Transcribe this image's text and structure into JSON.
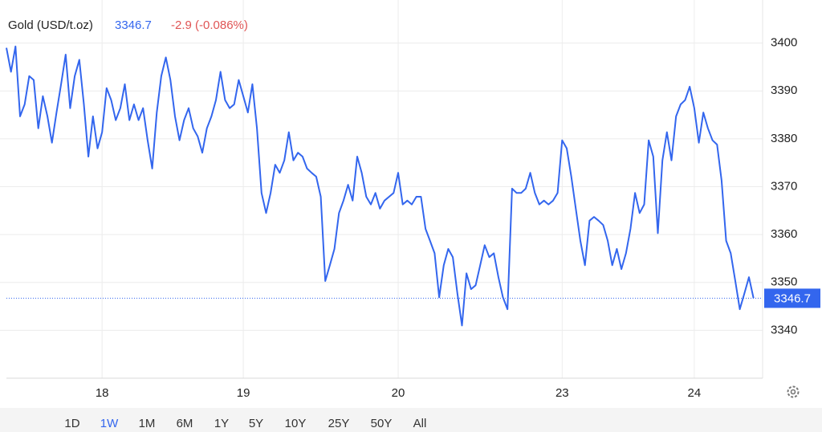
{
  "chart_data": {
    "type": "line",
    "title": "Gold (USD/t.oz)",
    "last_value": 3346.7,
    "change_label": "-2.9 (-0.086%)",
    "series": [
      {
        "color": "#3366ee",
        "values": [
          3399.0,
          3394.0,
          3399.3,
          3384.7,
          3387.2,
          3393.1,
          3392.3,
          3382.2,
          3388.9,
          3384.7,
          3379.2,
          3385.5,
          3391.4,
          3397.6,
          3386.4,
          3393.1,
          3396.5,
          3387.2,
          3376.3,
          3384.7,
          3378.0,
          3381.4,
          3390.6,
          3388.1,
          3383.9,
          3386.4,
          3391.4,
          3383.9,
          3387.2,
          3383.9,
          3386.4,
          3379.7,
          3373.8,
          3385.5,
          3393.1,
          3397.0,
          3392.3,
          3384.7,
          3379.7,
          3383.9,
          3386.4,
          3382.2,
          3380.5,
          3377.1,
          3382.2,
          3384.7,
          3388.1,
          3394.0,
          3388.1,
          3386.4,
          3387.2,
          3392.3,
          3388.9,
          3385.5,
          3391.4,
          3382.2,
          3368.7,
          3364.5,
          3368.7,
          3374.6,
          3372.9,
          3375.5,
          3381.4,
          3375.5,
          3377.1,
          3376.3,
          3373.8,
          3372.9,
          3372.1,
          3367.9,
          3350.3,
          3353.6,
          3357.0,
          3364.5,
          3367.1,
          3370.4,
          3367.1,
          3376.3,
          3372.9,
          3367.9,
          3366.3,
          3368.7,
          3365.4,
          3367.1,
          3367.9,
          3368.7,
          3372.9,
          3366.3,
          3367.1,
          3366.3,
          3367.9,
          3367.9,
          3361.2,
          3358.7,
          3356.1,
          3346.9,
          3353.6,
          3357.0,
          3355.3,
          3347.7,
          3341.0,
          3351.9,
          3348.6,
          3349.4,
          3353.6,
          3357.8,
          3355.3,
          3356.1,
          3351.1,
          3346.9,
          3344.4,
          3369.6,
          3368.7,
          3368.7,
          3369.6,
          3372.9,
          3368.7,
          3366.3,
          3367.1,
          3366.3,
          3367.1,
          3368.7,
          3379.7,
          3378.0,
          3372.1,
          3365.4,
          3358.7,
          3353.6,
          3362.9,
          3363.7,
          3362.9,
          3362.0,
          3358.7,
          3353.6,
          3357.0,
          3352.8,
          3356.1,
          3361.2,
          3368.7,
          3364.5,
          3366.3,
          3379.7,
          3376.3,
          3360.3,
          3375.5,
          3381.4,
          3375.5,
          3384.7,
          3387.2,
          3388.1,
          3390.9,
          3386.4,
          3379.2,
          3385.5,
          3382.2,
          3379.7,
          3378.8,
          3371.3,
          3358.7,
          3356.1,
          3350.3,
          3344.4,
          3347.7,
          3351.1,
          3346.7
        ]
      }
    ],
    "xlim": [
      0,
      166
    ],
    "xticks": [
      {
        "value": 21,
        "label": "18"
      },
      {
        "value": 52,
        "label": "19"
      },
      {
        "value": 86,
        "label": "20"
      },
      {
        "value": 122,
        "label": "23"
      },
      {
        "value": 151,
        "label": "24"
      }
    ],
    "ylim": [
      3330,
      3409
    ],
    "yticks": [
      3340,
      3350,
      3360,
      3370,
      3380,
      3390,
      3400
    ],
    "grid": true,
    "ranges": [
      "1D",
      "1W",
      "1M",
      "6M",
      "1Y",
      "5Y",
      "10Y",
      "25Y",
      "50Y",
      "All"
    ],
    "active_range": "1W"
  }
}
